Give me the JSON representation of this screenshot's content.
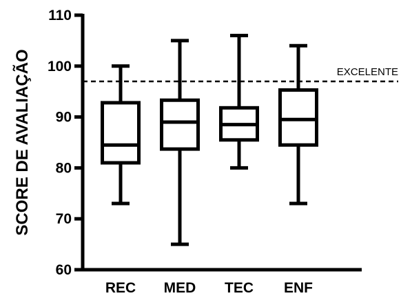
{
  "chart_data": {
    "type": "box",
    "ylabel": "SCORE DE AVALIAÇÃO",
    "xlabel": "",
    "ylim": [
      60,
      110
    ],
    "yticks": [
      60,
      70,
      80,
      90,
      100,
      110
    ],
    "grid": false,
    "categories": [
      "REC",
      "MED",
      "TEC",
      "ENF"
    ],
    "boxes": [
      {
        "category": "REC",
        "min": 73,
        "q1": 81,
        "median": 84.5,
        "q3": 92.8,
        "max": 100
      },
      {
        "category": "MED",
        "min": 65,
        "q1": 83.7,
        "median": 89,
        "q3": 93.3,
        "max": 105
      },
      {
        "category": "TEC",
        "min": 80,
        "q1": 85.5,
        "median": 88.5,
        "q3": 91.8,
        "max": 106
      },
      {
        "category": "ENF",
        "min": 73,
        "q1": 84.5,
        "median": 89.5,
        "q3": 95.3,
        "max": 104
      }
    ],
    "reference_line": {
      "value": 97,
      "label": "EXCELENTE",
      "style": "dashed"
    },
    "colors": {
      "stroke": "#000000",
      "background": "#ffffff"
    }
  }
}
